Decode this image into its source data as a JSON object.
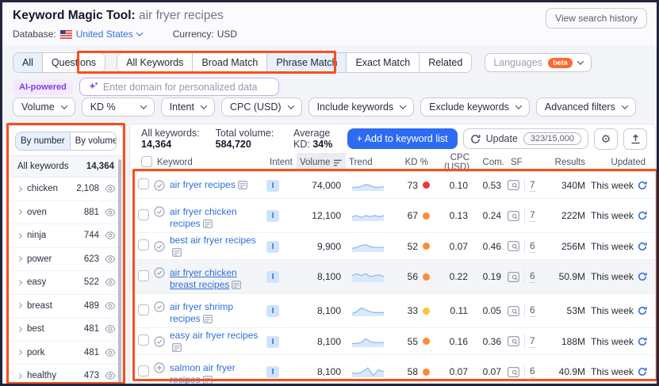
{
  "colors": {
    "annotation": "#f8501d",
    "accent_blue": "#2d6bf2",
    "link_blue": "#2e6fd8",
    "beta_orange": "#ff682f",
    "ai_purple": "#7d3ce8",
    "kd_red": "#f23535",
    "kd_orange": "#ff8a38",
    "kd_yellow": "#ffc431",
    "spark_line": "#86b9ec",
    "spark_fill": "#d9e9fa"
  },
  "header": {
    "title": "Keyword Magic Tool:",
    "query": "air fryer recipes",
    "view_history_label": "View search history",
    "database_label": "Database:",
    "database_value": "United States",
    "currency_label": "Currency:",
    "currency_value": "USD"
  },
  "tabs": {
    "question_tabs": [
      {
        "label": "All",
        "selected": true
      },
      {
        "label": "Questions"
      }
    ],
    "match_tabs": [
      {
        "label": "All Keywords"
      },
      {
        "label": "Broad Match"
      },
      {
        "label": "Phrase Match",
        "selected": true
      },
      {
        "label": "Exact Match"
      },
      {
        "label": "Related"
      }
    ],
    "languages_label": "Languages",
    "beta_label": "beta"
  },
  "ai_bar": {
    "badge_label": "AI-powered",
    "placeholder": "Enter domain for personalized data"
  },
  "filters": [
    {
      "label": "Volume"
    },
    {
      "label": "KD %"
    },
    {
      "label": "Intent"
    },
    {
      "label": "CPC (USD)"
    },
    {
      "label": "Include keywords"
    },
    {
      "label": "Exclude keywords"
    },
    {
      "label": "Advanced filters"
    }
  ],
  "sidebar": {
    "toggle": [
      {
        "label": "By number",
        "selected": true
      },
      {
        "label": "By volume"
      }
    ],
    "all_label": "All keywords",
    "all_count": "14,364",
    "groups": [
      {
        "label": "chicken",
        "count": "2,108"
      },
      {
        "label": "oven",
        "count": "881"
      },
      {
        "label": "ninja",
        "count": "744"
      },
      {
        "label": "power",
        "count": "623"
      },
      {
        "label": "easy",
        "count": "522"
      },
      {
        "label": "breast",
        "count": "489"
      },
      {
        "label": "best",
        "count": "481"
      },
      {
        "label": "pork",
        "count": "481"
      },
      {
        "label": "healthy",
        "count": "473"
      }
    ]
  },
  "stats": {
    "all_keywords_label": "All keywords:",
    "all_keywords_value": "14,364",
    "total_volume_label": "Total volume:",
    "total_volume_value": "584,720",
    "avg_kd_label": "Average KD:",
    "avg_kd_value": "34%",
    "add_button_label": "+ Add to keyword list",
    "update_button_label": "Update",
    "update_quota": "323/15,000"
  },
  "table": {
    "columns": [
      "Keyword",
      "Intent",
      "Volume",
      "Trend",
      "KD %",
      "CPC (USD)",
      "Com.",
      "SF",
      "Results",
      "Updated"
    ],
    "rows": [
      {
        "keyword": "air fryer recipes",
        "lead": "check",
        "intent": "I",
        "volume": "74,000",
        "trend": [
          3,
          3,
          4,
          6,
          5,
          3,
          3,
          4
        ],
        "kd": "73",
        "kd_color": "#f23535",
        "cpc": "0.10",
        "com": "0.53",
        "sf": "7",
        "results": "340M",
        "updated": "This week"
      },
      {
        "keyword": "air fryer chicken recipes",
        "lead": "check",
        "intent": "I",
        "volume": "12,100",
        "tall": true,
        "trend": [
          4,
          5,
          3,
          5,
          4,
          5,
          4,
          5
        ],
        "kd": "67",
        "kd_color": "#ff8a38",
        "cpc": "0.13",
        "com": "0.24",
        "sf": "7",
        "results": "222M",
        "updated": "This week"
      },
      {
        "keyword": "best air fryer recipes",
        "lead": "check",
        "intent": "I",
        "volume": "9,900",
        "trend": [
          3,
          4,
          6,
          7,
          5,
          4,
          4,
          4
        ],
        "kd": "52",
        "kd_color": "#ff8a38",
        "cpc": "0.07",
        "com": "0.46",
        "sf": "6",
        "results": "256M",
        "updated": "This week"
      },
      {
        "keyword": "air fryer chicken breast recipes",
        "lead": "check",
        "intent": "I",
        "volume": "8,100",
        "tall": true,
        "hovered": true,
        "trend": [
          6,
          8,
          6,
          8,
          5,
          6,
          7,
          5
        ],
        "kd": "56",
        "kd_color": "#ff8a38",
        "cpc": "0.22",
        "com": "0.19",
        "sf": "6",
        "results": "50.9M",
        "updated": "This week"
      },
      {
        "keyword": "air fryer shrimp recipes",
        "lead": "check",
        "intent": "I",
        "volume": "8,100",
        "tall": true,
        "trend": [
          2,
          4,
          8,
          6,
          4,
          3,
          3,
          3
        ],
        "kd": "33",
        "kd_color": "#ffc431",
        "cpc": "0.11",
        "com": "0.05",
        "sf": "6",
        "results": "53M",
        "updated": "This week"
      },
      {
        "keyword": "easy air fryer recipes",
        "lead": "check",
        "intent": "I",
        "volume": "8,100",
        "trend": [
          3,
          3,
          4,
          8,
          5,
          4,
          4,
          4
        ],
        "kd": "55",
        "kd_color": "#ff8a38",
        "cpc": "0.16",
        "com": "0.36",
        "sf": "7",
        "results": "188M",
        "updated": "This week"
      },
      {
        "keyword": "salmon air fryer recipes",
        "lead": "plus",
        "intent": "I",
        "volume": "8,100",
        "tall": true,
        "trend": [
          4,
          3,
          5,
          9,
          1,
          7,
          5
        ],
        "kd": "58",
        "kd_color": "#ff8a38",
        "cpc": "0.07",
        "com": "0.07",
        "sf": "6",
        "results": "40.9M",
        "updated": "This week"
      }
    ]
  }
}
